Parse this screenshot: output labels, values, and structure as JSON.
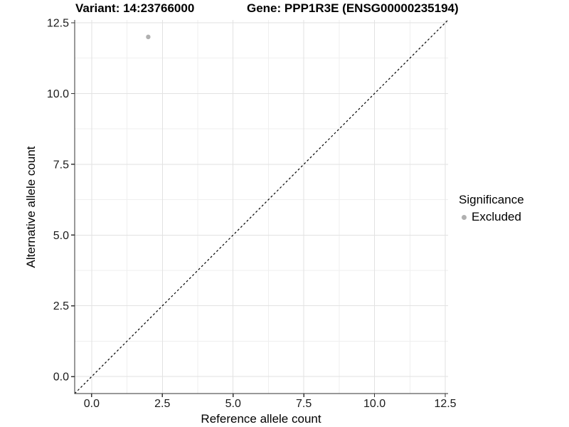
{
  "chart_data": {
    "type": "scatter",
    "title_left": "Variant: 14:23766000",
    "title_right": "Gene: PPP1R3E (ENSG00000235194)",
    "xlabel": "Reference allele count",
    "ylabel": "Alternative allele count",
    "xlim": [
      -0.6,
      12.6
    ],
    "ylim": [
      -0.6,
      12.6
    ],
    "x_ticks": {
      "values": [
        0,
        2.5,
        5,
        7.5,
        10,
        12.5
      ],
      "labels": [
        "0.0",
        "2.5",
        "5.0",
        "7.5",
        "10.0",
        "12.5"
      ]
    },
    "y_ticks": {
      "values": [
        0,
        2.5,
        5,
        7.5,
        10,
        12.5
      ],
      "labels": [
        "0.0",
        "2.5",
        "5.0",
        "7.5",
        "10.0",
        "12.5"
      ]
    },
    "minor_ticks": [
      1.25,
      3.75,
      6.25,
      8.75,
      11.25
    ],
    "grid": true,
    "legend_position": "right",
    "reference_line": {
      "slope": 1,
      "intercept": 0,
      "style": "dashed",
      "color": "#000000"
    },
    "series": [
      {
        "name": "Excluded",
        "color": "#b0b0b0",
        "points": [
          {
            "x": 2,
            "y": 12
          }
        ]
      }
    ],
    "legend": {
      "title": "Significance",
      "items": [
        {
          "label": "Excluded",
          "color": "#b0b0b0",
          "marker": "circle"
        }
      ]
    },
    "colors": {
      "background": "#ffffff",
      "grid_major": "#e2e2e2",
      "grid_minor": "#efefef",
      "axis_line": "#333333",
      "tick_label": "#1a1a1a",
      "title": "#000000"
    }
  }
}
